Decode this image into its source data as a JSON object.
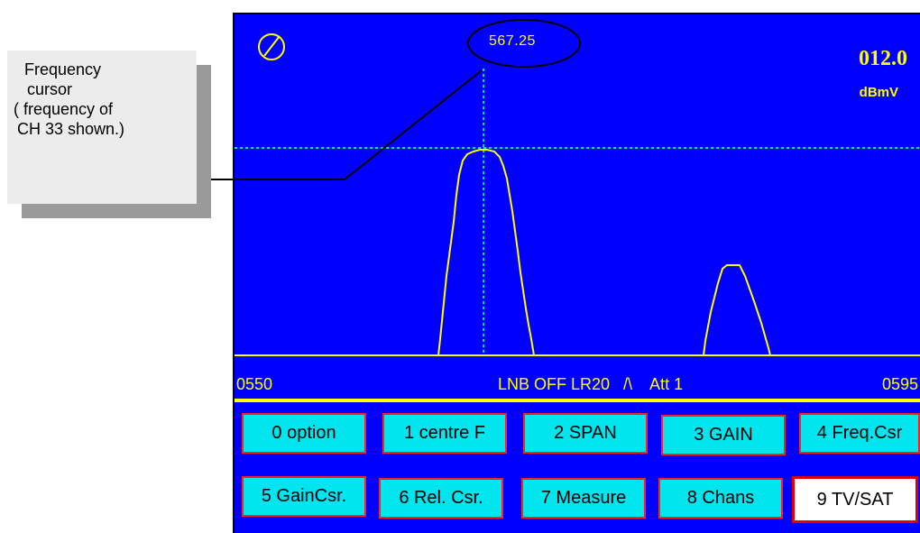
{
  "callout": {
    "lines": [
      "Frequency",
      "cursor",
      "( frequency of",
      "CH 33 shown.)"
    ]
  },
  "screen": {
    "cursor_frequency": "567.25",
    "level_value": "012.0",
    "level_unit": "dBmV",
    "status": {
      "start_freq": "0550",
      "mode": "LNB OFF LR20   /\\    Att 1",
      "stop_freq": "0595"
    }
  },
  "softkeys": [
    {
      "label": "0  option"
    },
    {
      "label": "1 centre F"
    },
    {
      "label": "2  SPAN"
    },
    {
      "label": "3  GAIN"
    },
    {
      "label": "4 Freq.Csr"
    },
    {
      "label": "5 GainCsr."
    },
    {
      "label": "6  Rel. Csr."
    },
    {
      "label": "7 Measure"
    },
    {
      "label": "8  Chans"
    },
    {
      "label": "9  TV/SAT"
    }
  ],
  "colors": {
    "screen_bg": "#0000ff",
    "trace": "#ffff00",
    "cursor": "#00e5a0",
    "softkey_bg": "#00e5ee",
    "softkey_border": "#ff2020"
  },
  "icons": {
    "mode_indicator": "circle-slash-icon"
  }
}
